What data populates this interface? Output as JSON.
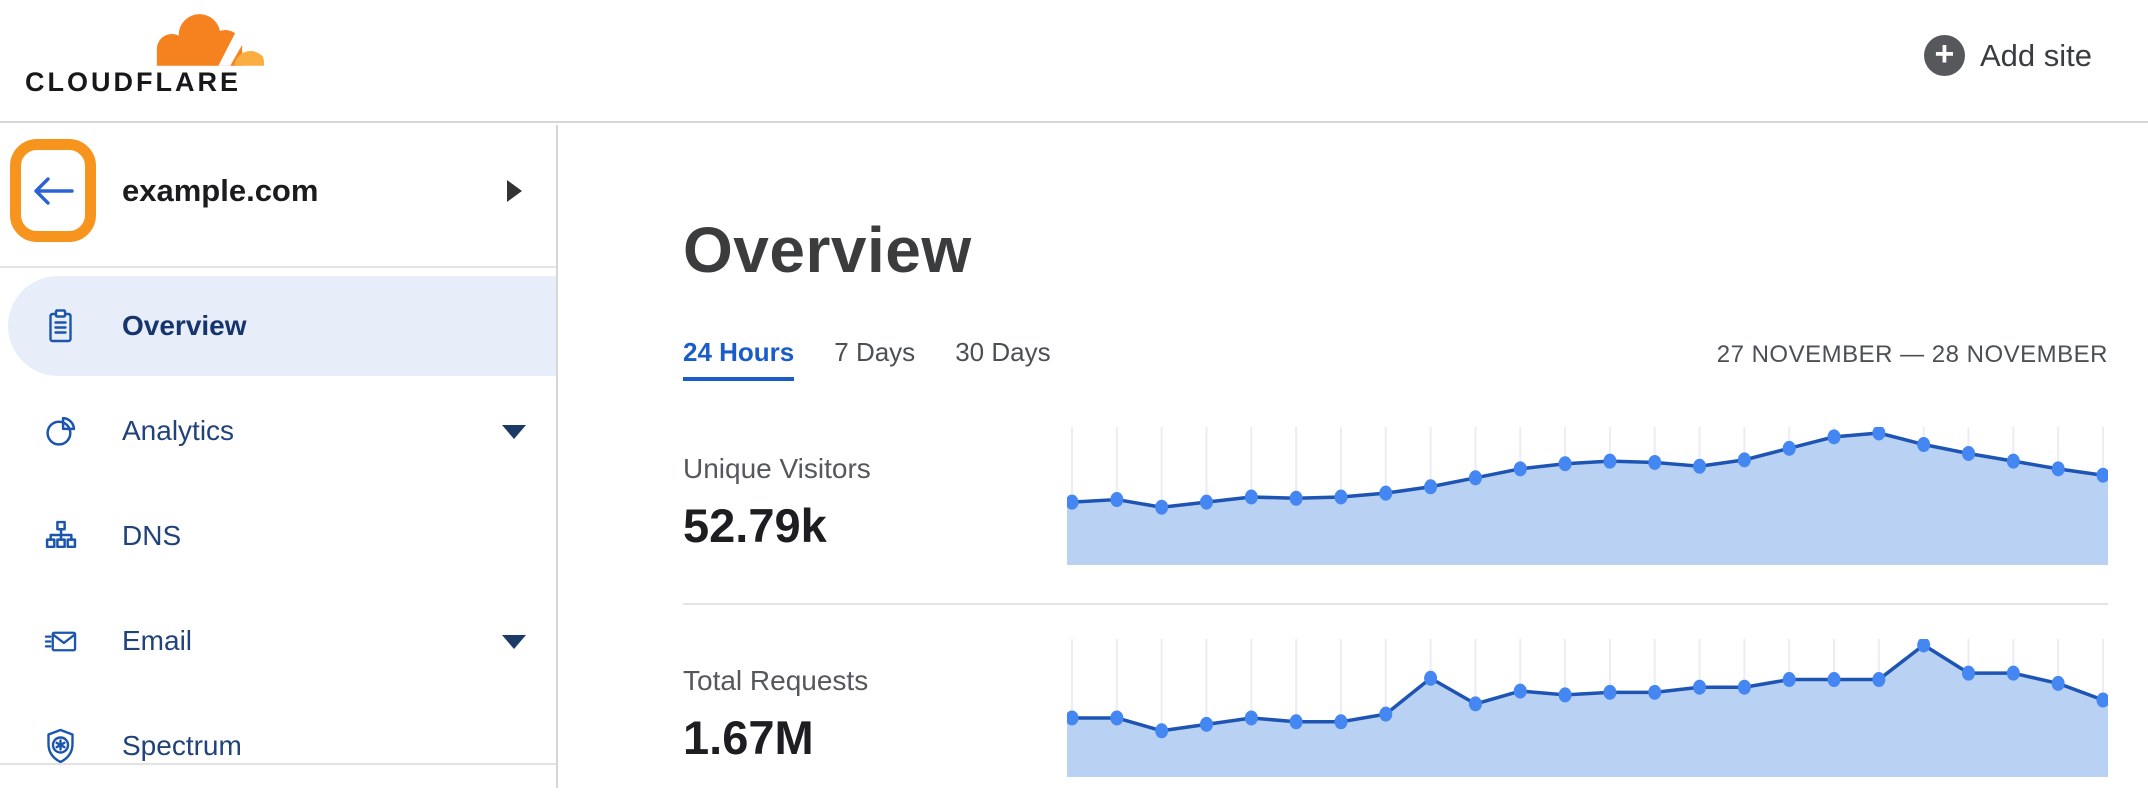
{
  "header": {
    "logo_text": "CLOUDFLARE",
    "add_site_label": "Add site"
  },
  "sidebar": {
    "site_name": "example.com",
    "items": [
      {
        "label": "Overview",
        "icon": "clipboard-icon",
        "active": true,
        "caret": false
      },
      {
        "label": "Analytics",
        "icon": "pie-chart-icon",
        "active": false,
        "caret": true
      },
      {
        "label": "DNS",
        "icon": "sitemap-icon",
        "active": false,
        "caret": false
      },
      {
        "label": "Email",
        "icon": "email-icon",
        "active": false,
        "caret": true
      },
      {
        "label": "Spectrum",
        "icon": "shield-icon",
        "active": false,
        "caret": false
      }
    ]
  },
  "main": {
    "title": "Overview",
    "tabs": [
      {
        "label": "24 Hours",
        "active": true
      },
      {
        "label": "7 Days",
        "active": false
      },
      {
        "label": "30 Days",
        "active": false
      }
    ],
    "date_range": "27 NOVEMBER — 28 NOVEMBER",
    "metrics": [
      {
        "label": "Unique Visitors",
        "value": "52.79k"
      },
      {
        "label": "Total Requests",
        "value": "1.67M"
      }
    ]
  },
  "colors": {
    "brand_orange": "#f6821f",
    "brand_orange_light": "#fbad41",
    "annotation_orange": "#f7941d",
    "nav_icon_blue": "#1b55ad",
    "nav_text": "#21437a",
    "active_pill_bg": "#e8eef9",
    "active_nav_text": "#16356f",
    "tab_active_blue": "#1a5dc8",
    "chart_line": "#1e55b4",
    "chart_fill": "#b9d2f3",
    "chart_dot": "#4486f2",
    "chart_grid": "#ecedf4"
  },
  "chart_data": [
    {
      "type": "area",
      "title": "Unique Visitors",
      "displayed_total": "52.79k",
      "x_range": "27 November — 28 November (24 Hours view)",
      "num_points": 24,
      "values_relative_0_100": [
        46,
        48,
        42,
        46,
        50,
        49,
        50,
        53,
        58,
        65,
        72,
        76,
        78,
        77,
        74,
        79,
        88,
        97,
        100,
        91,
        84,
        78,
        72,
        67
      ],
      "gridlines": "vertical line at each data point",
      "legend": "none"
    },
    {
      "type": "area",
      "title": "Total Requests",
      "displayed_total": "1.67M",
      "x_range": "27 November — 28 November (24 Hours view)",
      "num_points": 24,
      "values_relative_0_100": [
        43,
        43,
        33,
        38,
        43,
        40,
        40,
        46,
        74,
        54,
        64,
        61,
        63,
        63,
        67,
        67,
        73,
        73,
        73,
        100,
        78,
        78,
        70,
        57
      ],
      "gridlines": "vertical line at each data point",
      "legend": "none"
    }
  ]
}
